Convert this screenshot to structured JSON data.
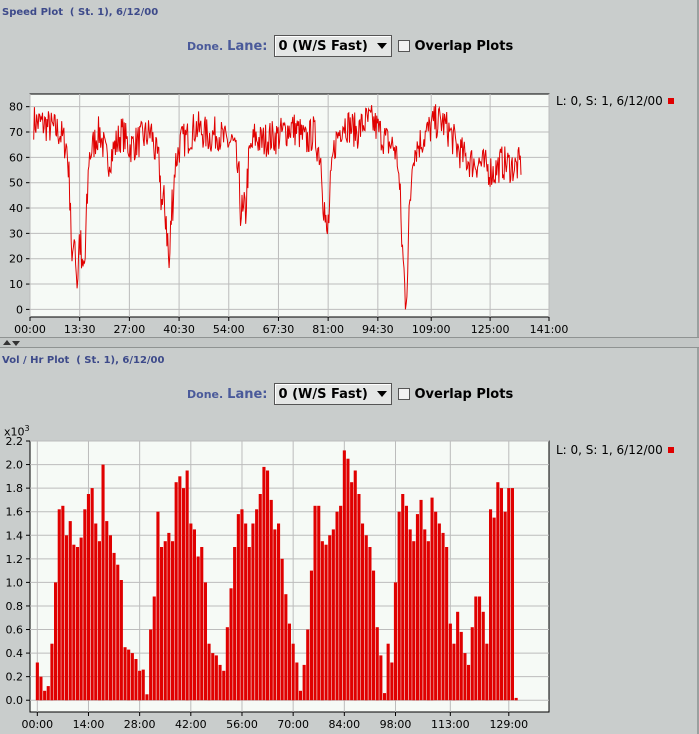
{
  "panels": {
    "speed": {
      "title": "Speed Plot  ( St. 1), 6/12/00",
      "done": "Done.",
      "lane_label": "Lane:",
      "lane_value": "0 (W/S Fast)",
      "overlap_label": "Overlap Plots",
      "legend": "L: 0, S: 1, 6/12/00"
    },
    "volume": {
      "title": "Vol / Hr Plot  ( St. 1), 6/12/00",
      "done": "Done.",
      "lane_label": "Lane:",
      "lane_value": "0 (W/S Fast)",
      "overlap_label": "Overlap Plots",
      "legend": "L: 0, S: 1, 6/12/00",
      "multiplier_base": "x10",
      "multiplier_exp": "3"
    }
  },
  "colors": {
    "series": "#e00000",
    "plot_bg": "#f6faf6",
    "grid": "#bcbcbc",
    "page": "#c9cdcc"
  },
  "icons": {
    "divider_up": "arrow-up-icon",
    "divider_down": "arrow-down-icon",
    "dropdown": "chevron-down-icon"
  },
  "chart_data": [
    {
      "type": "line",
      "series_name": "L: 0, S: 1, 6/12/00",
      "xlim": [
        0,
        141
      ],
      "ylim": [
        -3,
        85
      ],
      "yticks": [
        0,
        10,
        20,
        30,
        40,
        50,
        60,
        70,
        80
      ],
      "xticks": [
        {
          "v": 0,
          "label": "00:00"
        },
        {
          "v": 13.5,
          "label": "13:30"
        },
        {
          "v": 27,
          "label": "27:00"
        },
        {
          "v": 40.5,
          "label": "40:30"
        },
        {
          "v": 54,
          "label": "54:00"
        },
        {
          "v": 67.5,
          "label": "67:30"
        },
        {
          "v": 81,
          "label": "81:00"
        },
        {
          "v": 94.5,
          "label": "94:30"
        },
        {
          "v": 109,
          "label": "109:00"
        },
        {
          "v": 125,
          "label": "125:00"
        },
        {
          "v": 141,
          "label": "141:00"
        }
      ],
      "x_range": [
        1,
        133.5
      ],
      "profile": [
        [
          1,
          74
        ],
        [
          4,
          73
        ],
        [
          8,
          70
        ],
        [
          10,
          64
        ],
        [
          11,
          45
        ],
        [
          11.5,
          8
        ],
        [
          12,
          35
        ],
        [
          12.8,
          10
        ],
        [
          13.5,
          30
        ],
        [
          14.2,
          12
        ],
        [
          15,
          20
        ],
        [
          16,
          60
        ],
        [
          18,
          68
        ],
        [
          19,
          70
        ],
        [
          21,
          58
        ],
        [
          23,
          64
        ],
        [
          25,
          70
        ],
        [
          27,
          64
        ],
        [
          29,
          66
        ],
        [
          31,
          68
        ],
        [
          33,
          70
        ],
        [
          34,
          62
        ],
        [
          35,
          58
        ],
        [
          36,
          40
        ],
        [
          37,
          38
        ],
        [
          37.8,
          15
        ],
        [
          38.5,
          40
        ],
        [
          39.5,
          58
        ],
        [
          41,
          66
        ],
        [
          43,
          68
        ],
        [
          45,
          72
        ],
        [
          47,
          70
        ],
        [
          49,
          68
        ],
        [
          51,
          70
        ],
        [
          53,
          66
        ],
        [
          55,
          66
        ],
        [
          56,
          60
        ],
        [
          57,
          45
        ],
        [
          57.8,
          34
        ],
        [
          58.5,
          38
        ],
        [
          59.5,
          60
        ],
        [
          61,
          68
        ],
        [
          63,
          66
        ],
        [
          65,
          68
        ],
        [
          67,
          68
        ],
        [
          69,
          70
        ],
        [
          71,
          72
        ],
        [
          73,
          70
        ],
        [
          75,
          66
        ],
        [
          77,
          70
        ],
        [
          79,
          60
        ],
        [
          79.8,
          44
        ],
        [
          80.6,
          26
        ],
        [
          81.4,
          40
        ],
        [
          82.3,
          60
        ],
        [
          83,
          66
        ],
        [
          85,
          74
        ],
        [
          87,
          72
        ],
        [
          89,
          70
        ],
        [
          91,
          74
        ],
        [
          93,
          74
        ],
        [
          95,
          70
        ],
        [
          97,
          66
        ],
        [
          99,
          64
        ],
        [
          100,
          58
        ],
        [
          100.8,
          34
        ],
        [
          101.4,
          18
        ],
        [
          102,
          4
        ],
        [
          102.6,
          18
        ],
        [
          103.2,
          40
        ],
        [
          104,
          62
        ],
        [
          106,
          66
        ],
        [
          108,
          70
        ],
        [
          110,
          74
        ],
        [
          112,
          74
        ],
        [
          114,
          70
        ],
        [
          116,
          64
        ],
        [
          118,
          60
        ],
        [
          120,
          58
        ],
        [
          122,
          58
        ],
        [
          124,
          56
        ],
        [
          126,
          54
        ],
        [
          128,
          58
        ],
        [
          130,
          57
        ],
        [
          132,
          56
        ],
        [
          133.5,
          58
        ]
      ],
      "note": ""
    },
    {
      "type": "bar",
      "series_name": "L: 0, S: 1, 6/12/00",
      "xlim": [
        -2,
        140
      ],
      "ylim": [
        -0.1,
        2.2
      ],
      "yticks": [
        0,
        0.2,
        0.4,
        0.6,
        0.8,
        1.0,
        1.2,
        1.4,
        1.6,
        1.8,
        2.0,
        2.2
      ],
      "xticks": [
        {
          "v": 0,
          "label": "00:00"
        },
        {
          "v": 14,
          "label": "14:00"
        },
        {
          "v": 28,
          "label": "28:00"
        },
        {
          "v": 42,
          "label": "42:00"
        },
        {
          "v": 56,
          "label": "56:00"
        },
        {
          "v": 70,
          "label": "70:00"
        },
        {
          "v": 84,
          "label": "84:00"
        },
        {
          "v": 98,
          "label": "98:00"
        },
        {
          "v": 113,
          "label": "113:00"
        },
        {
          "v": 129,
          "label": "129:00"
        }
      ],
      "bar_width": 0.85,
      "values": [
        0.32,
        0.2,
        0.08,
        0.12,
        0.48,
        1.0,
        1.62,
        1.65,
        1.4,
        1.52,
        1.32,
        1.3,
        1.38,
        1.62,
        1.75,
        1.8,
        1.5,
        1.35,
        2.0,
        1.52,
        1.4,
        1.25,
        1.15,
        1.02,
        0.45,
        0.43,
        0.4,
        0.35,
        0.25,
        0.26,
        0.05,
        0.6,
        0.88,
        1.6,
        1.3,
        1.35,
        1.42,
        1.35,
        1.85,
        1.9,
        1.8,
        1.95,
        1.5,
        1.45,
        1.22,
        1.3,
        1.0,
        0.48,
        0.4,
        0.38,
        0.3,
        0.25,
        0.62,
        0.95,
        1.3,
        1.58,
        1.62,
        1.5,
        1.3,
        1.5,
        1.62,
        1.75,
        1.98,
        1.95,
        1.7,
        1.45,
        1.5,
        1.2,
        0.9,
        0.65,
        0.48,
        0.32,
        0.08,
        0.3,
        0.6,
        1.1,
        1.65,
        1.65,
        1.35,
        1.32,
        1.4,
        1.45,
        1.6,
        1.65,
        2.12,
        2.05,
        1.85,
        1.95,
        1.75,
        1.5,
        1.4,
        1.3,
        1.1,
        0.62,
        0.38,
        0.06,
        0.48,
        0.32,
        1.0,
        1.6,
        1.75,
        1.65,
        1.45,
        1.35,
        1.58,
        1.7,
        1.45,
        1.35,
        1.72,
        1.6,
        1.5,
        1.42,
        1.3,
        0.65,
        0.48,
        0.75,
        0.58,
        0.4,
        0.3,
        0.62,
        0.88,
        0.88,
        0.75,
        0.48,
        1.62,
        1.55,
        1.85,
        1.8,
        1.6,
        1.8,
        1.8,
        0.02
      ]
    }
  ]
}
